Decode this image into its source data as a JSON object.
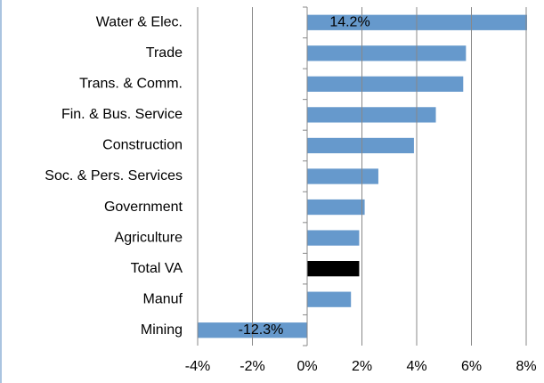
{
  "chart_data": {
    "type": "bar",
    "orientation": "horizontal",
    "categories": [
      "Water & Elec.",
      "Trade",
      "Trans. & Comm.",
      "Fin. & Bus. Service",
      "Construction",
      "Soc. & Pers. Services",
      "Government",
      "Agriculture",
      "Total VA",
      "Manuf",
      "Mining"
    ],
    "values": [
      14.2,
      5.8,
      5.7,
      4.7,
      3.9,
      2.6,
      2.1,
      1.9,
      1.9,
      1.6,
      -12.3
    ],
    "value_labels": [
      "14.2%",
      null,
      null,
      null,
      null,
      null,
      null,
      null,
      null,
      null,
      "-12.3%"
    ],
    "colors": [
      "#6699cc",
      "#6699cc",
      "#6699cc",
      "#6699cc",
      "#6699cc",
      "#6699cc",
      "#6699cc",
      "#6699cc",
      "#000000",
      "#6699cc",
      "#6699cc"
    ],
    "xlim": [
      -4,
      8
    ],
    "xticks": [
      {
        "value": -4,
        "label": "-4%"
      },
      {
        "value": -2,
        "label": "-2%"
      },
      {
        "value": 0,
        "label": "0%"
      },
      {
        "value": 2,
        "label": "2%"
      },
      {
        "value": 4,
        "label": "4%"
      },
      {
        "value": 6,
        "label": "6%"
      },
      {
        "value": 8,
        "label": "8%"
      }
    ],
    "grid": true
  }
}
